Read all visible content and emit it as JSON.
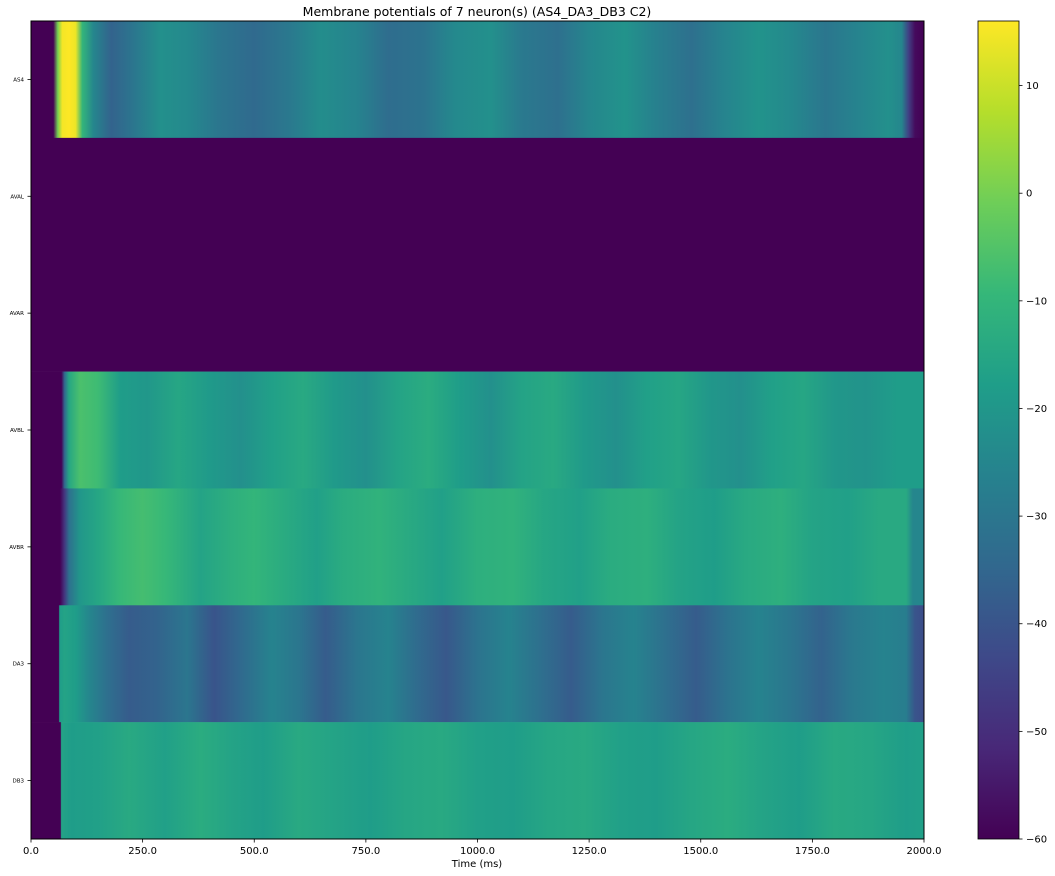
{
  "chart_data": {
    "type": "heatmap",
    "title": "Membrane potentials of 7 neuron(s) (AS4_DA3_DB3 C2)",
    "xlabel": "Time (ms)",
    "ylabel": "",
    "xlim": [
      0,
      2000
    ],
    "x_ticks": [
      0,
      250,
      500,
      750,
      1000,
      1250,
      1500,
      1750,
      2000
    ],
    "x_tick_labels": [
      "0.0",
      "250.0",
      "500.0",
      "750.0",
      "1000.0",
      "1250.0",
      "1500.0",
      "1750.0",
      "2000.0"
    ],
    "rows": [
      "AS4",
      "AVAL",
      "AVAR",
      "AVBL",
      "AVBR",
      "DA3",
      "DB3"
    ],
    "colormap": "viridis",
    "colorbar": {
      "vmin": -60,
      "vmax": 16,
      "ticks": [
        10,
        0,
        -10,
        -20,
        -30,
        -40,
        -50,
        -60
      ],
      "tick_labels": [
        "10",
        "0",
        "−10",
        "−20",
        "−30",
        "−40",
        "−50",
        "−60"
      ]
    },
    "series": [
      {
        "name": "AS4",
        "t": [
          0,
          50,
          60,
          70,
          85,
          100,
          115,
          140,
          180,
          230,
          290,
          350,
          420,
          500,
          580,
          650,
          730,
          800,
          880,
          950,
          1030,
          1100,
          1180,
          1250,
          1330,
          1400,
          1480,
          1550,
          1630,
          1700,
          1780,
          1850,
          1920,
          1950,
          1965,
          1980,
          2000
        ],
        "v": [
          -60,
          -60,
          0,
          15,
          16,
          14,
          -10,
          -25,
          -36,
          -30,
          -22,
          -24,
          -30,
          -34,
          -29,
          -23,
          -26,
          -33,
          -31,
          -24,
          -22,
          -29,
          -32,
          -25,
          -21,
          -27,
          -32,
          -26,
          -21,
          -24,
          -30,
          -26,
          -22,
          -25,
          -45,
          -58,
          -60
        ]
      },
      {
        "name": "AVAL",
        "t": [
          0,
          2000
        ],
        "v": [
          -60,
          -60
        ]
      },
      {
        "name": "AVAR",
        "t": [
          0,
          2000
        ],
        "v": [
          -60,
          -60
        ]
      },
      {
        "name": "AVBL",
        "t": [
          0,
          68,
          75,
          85,
          110,
          150,
          200,
          260,
          330,
          400,
          470,
          540,
          610,
          680,
          750,
          820,
          890,
          960,
          1030,
          1100,
          1170,
          1240,
          1310,
          1380,
          1450,
          1520,
          1590,
          1660,
          1730,
          1800,
          1870,
          1940,
          2000
        ],
        "v": [
          -60,
          -60,
          -35,
          -15,
          -6,
          -8,
          -18,
          -20,
          -15,
          -19,
          -22,
          -17,
          -14,
          -19,
          -22,
          -16,
          -13,
          -18,
          -22,
          -16,
          -14,
          -19,
          -22,
          -17,
          -15,
          -20,
          -22,
          -17,
          -15,
          -20,
          -21,
          -18,
          -18
        ]
      },
      {
        "name": "AVBR",
        "t": [
          0,
          65,
          75,
          85,
          110,
          150,
          200,
          250,
          300,
          380,
          450,
          500,
          560,
          640,
          700,
          780,
          850,
          920,
          1000,
          1080,
          1150,
          1230,
          1300,
          1380,
          1450,
          1530,
          1600,
          1680,
          1750,
          1830,
          1900,
          1960,
          1975,
          2000
        ],
        "v": [
          -60,
          -60,
          -48,
          -32,
          -20,
          -15,
          -9,
          -7,
          -9,
          -16,
          -12,
          -10,
          -13,
          -17,
          -13,
          -11,
          -14,
          -17,
          -12,
          -11,
          -15,
          -17,
          -13,
          -12,
          -16,
          -18,
          -14,
          -12,
          -16,
          -17,
          -14,
          -14,
          -25,
          -25
        ]
      },
      {
        "name": "DA3",
        "t": [
          0,
          62,
          64,
          75,
          100,
          130,
          170,
          220,
          280,
          350,
          410,
          470,
          540,
          600,
          660,
          730,
          800,
          860,
          930,
          1000,
          1070,
          1140,
          1210,
          1280,
          1350,
          1420,
          1490,
          1560,
          1630,
          1700,
          1770,
          1840,
          1910,
          1960,
          1980,
          2000
        ],
        "v": [
          -60,
          -60,
          -18,
          -16,
          -18,
          -25,
          -32,
          -38,
          -36,
          -30,
          -40,
          -34,
          -26,
          -30,
          -38,
          -30,
          -26,
          -33,
          -39,
          -31,
          -26,
          -32,
          -38,
          -30,
          -26,
          -32,
          -38,
          -31,
          -26,
          -30,
          -36,
          -29,
          -26,
          -28,
          -40,
          -42
        ]
      },
      {
        "name": "DB3",
        "t": [
          0,
          66,
          68,
          90,
          150,
          220,
          300,
          380,
          450,
          520,
          600,
          680,
          760,
          840,
          920,
          1000,
          1080,
          1160,
          1240,
          1320,
          1400,
          1480,
          1560,
          1640,
          1720,
          1800,
          1880,
          1960,
          2000
        ],
        "v": [
          -60,
          -60,
          -16,
          -18,
          -17,
          -14,
          -17,
          -13,
          -16,
          -18,
          -14,
          -16,
          -18,
          -15,
          -14,
          -17,
          -18,
          -15,
          -14,
          -17,
          -18,
          -15,
          -13,
          -16,
          -18,
          -14,
          -15,
          -18,
          -17
        ]
      }
    ]
  }
}
